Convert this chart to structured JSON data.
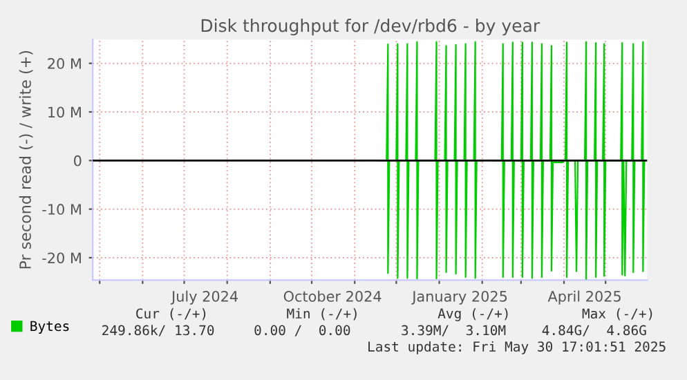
{
  "chart_data": {
    "type": "line",
    "title": "Disk throughput for /dev/rbd6 - by year",
    "ylabel": "Pr second read (-) / write (+)",
    "x": [
      "2024-11-18",
      "2024-11-24",
      "2024-11-25",
      "2024-11-25",
      "2024-11-26",
      "2024-12-01",
      "2024-12-02",
      "2024-12-02",
      "2024-12-03",
      "2024-12-08",
      "2024-12-09",
      "2024-12-09",
      "2024-12-10",
      "2024-12-15",
      "2024-12-16",
      "2024-12-16",
      "2024-12-17",
      "2024-12-29",
      "2024-12-30",
      "2024-12-30",
      "2024-12-31",
      "2025-01-05",
      "2025-01-06",
      "2025-01-06",
      "2025-01-07",
      "2025-01-12",
      "2025-01-13",
      "2025-01-13",
      "2025-01-14",
      "2025-01-19",
      "2025-01-20",
      "2025-01-20",
      "2025-01-21",
      "2025-01-26",
      "2025-01-27",
      "2025-01-27",
      "2025-01-28",
      "2025-02-01",
      "2025-02-05",
      "2025-02-09",
      "2025-02-15",
      "2025-02-16",
      "2025-02-16",
      "2025-02-17",
      "2025-02-22",
      "2025-02-23",
      "2025-02-23",
      "2025-02-24",
      "2025-03-01",
      "2025-03-02",
      "2025-03-02",
      "2025-03-03",
      "2025-03-08",
      "2025-03-09",
      "2025-03-09",
      "2025-03-10",
      "2025-03-15",
      "2025-03-16",
      "2025-03-16",
      "2025-03-17",
      "2025-03-22",
      "2025-03-23",
      "2025-03-23",
      "2025-03-24",
      "2025-03-31",
      "2025-04-01",
      "2025-04-02",
      "2025-04-03",
      "2025-04-03",
      "2025-04-04",
      "2025-04-09",
      "2025-04-10",
      "2025-04-11",
      "2025-04-16",
      "2025-04-17",
      "2025-04-17",
      "2025-04-18",
      "2025-04-23",
      "2025-04-24",
      "2025-04-24",
      "2025-04-25",
      "2025-04-29",
      "2025-04-30",
      "2025-04-30",
      "2025-05-01",
      "2025-05-12",
      "2025-05-13",
      "2025-05-13",
      "2025-05-14",
      "2025-05-15",
      "2025-05-16",
      "2025-05-20",
      "2025-05-21",
      "2025-05-21",
      "2025-05-22",
      "2025-05-27",
      "2025-05-28",
      "2025-05-28",
      "2025-05-29"
    ],
    "series": [
      {
        "name": "Bytes",
        "color": "#00cc00",
        "values": [
          0,
          0,
          23.9,
          -23.2,
          0,
          0,
          24.0,
          -24.2,
          0,
          0,
          24.0,
          -24.2,
          0,
          0,
          24.4,
          -24.3,
          0,
          0,
          24.4,
          -24.3,
          0,
          0,
          23.6,
          -23.0,
          0,
          0,
          23.8,
          -23.3,
          0,
          0,
          24.0,
          -24.0,
          0,
          0,
          24.4,
          -24.2,
          0,
          0,
          null,
          0,
          0,
          24.0,
          -24.0,
          0,
          0,
          24.3,
          -24.0,
          0,
          0,
          24.3,
          -24.0,
          0,
          0,
          24.3,
          -24.2,
          0,
          0,
          24.0,
          -24.0,
          0,
          0,
          23.6,
          -22.7,
          -0.4,
          -0.4,
          0,
          0,
          24.3,
          -24.0,
          0,
          0,
          -22.8,
          0,
          0,
          24.4,
          -24.4,
          0,
          0,
          24.2,
          -24.0,
          0,
          0,
          24.0,
          -23.8,
          0,
          0,
          24.2,
          -23.5,
          0,
          -23.7,
          0,
          0,
          24.0,
          -23.0,
          0,
          0,
          24.4,
          -22.8,
          0
        ]
      }
    ],
    "xlim": [
      "2024-04-26",
      "2025-05-31"
    ],
    "xticks": [
      {
        "value": "2024-05-01",
        "label": null
      },
      {
        "value": "2024-06-01",
        "label": null
      },
      {
        "value": "2024-07-01",
        "label": null
      },
      {
        "value": "2024-07-16",
        "label": "July 2024"
      },
      {
        "value": "2024-08-01",
        "label": null
      },
      {
        "value": "2024-09-01",
        "label": null
      },
      {
        "value": "2024-10-01",
        "label": null
      },
      {
        "value": "2024-10-16",
        "label": "October 2024"
      },
      {
        "value": "2024-11-01",
        "label": null
      },
      {
        "value": "2024-12-01",
        "label": null
      },
      {
        "value": "2025-01-01",
        "label": null
      },
      {
        "value": "2025-01-16",
        "label": "January 2025"
      },
      {
        "value": "2025-02-01",
        "label": null
      },
      {
        "value": "2025-03-01",
        "label": null
      },
      {
        "value": "2025-04-01",
        "label": null
      },
      {
        "value": "2025-04-16",
        "label": "April 2025"
      },
      {
        "value": "2025-05-01",
        "label": null
      }
    ],
    "ylim": [
      -24.6,
      24.9
    ],
    "yticks": [
      {
        "value": -20,
        "label": "-20 M"
      },
      {
        "value": -10,
        "label": "-10 M"
      },
      0,
      {
        "value": 10,
        "label": "10 M"
      },
      {
        "value": 20,
        "label": "20 M"
      }
    ],
    "ref_lines": [
      {
        "axis": "y",
        "value": 0,
        "color": "#000000"
      }
    ],
    "grid": true,
    "legend": "bottom",
    "marker": "none",
    "line_style": "solid",
    "annotations": [
      "Cur (-/+)",
      "Min (-/+)",
      "Avg (-/+)",
      "Max (-/+)",
      "249.86k/ 13.70",
      "0.00 /  0.00",
      "3.39M/  3.10M",
      "4.84G/  4.86G",
      "Last update: Fri May 30 17:01:51 2025"
    ]
  }
}
